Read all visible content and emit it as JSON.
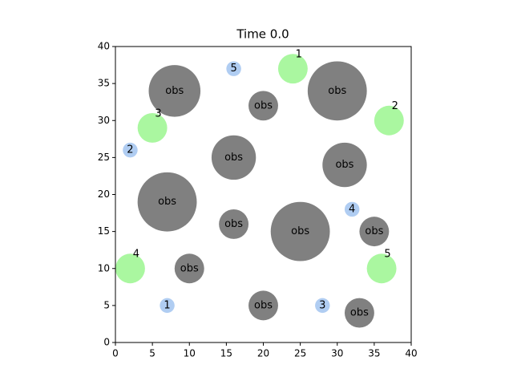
{
  "chart_data": {
    "type": "scatter",
    "title": "Time 0.0",
    "xlim": [
      0,
      40
    ],
    "ylim": [
      0,
      40
    ],
    "xticks": [
      0,
      5,
      10,
      15,
      20,
      25,
      30,
      35,
      40
    ],
    "yticks": [
      0,
      5,
      10,
      15,
      20,
      25,
      30,
      35,
      40
    ],
    "obstacles": {
      "label": "obs",
      "color": "#808080",
      "x": [
        8,
        20,
        30,
        16,
        31,
        7,
        16,
        25,
        35,
        10,
        20,
        33
      ],
      "y": [
        34,
        32,
        34,
        25,
        24,
        19,
        16,
        15,
        15,
        10,
        5,
        4
      ],
      "r": [
        3.5,
        2,
        4,
        3,
        3,
        4,
        2,
        4,
        2,
        2,
        2,
        2
      ]
    },
    "goals": {
      "color": "#aaf7a0",
      "labels": [
        "1",
        "2",
        "3",
        "4",
        "5"
      ],
      "x": [
        24,
        37,
        5,
        2,
        36
      ],
      "y": [
        37,
        30,
        29,
        10,
        10
      ],
      "r": [
        2,
        2,
        2,
        2,
        2
      ]
    },
    "agents": {
      "color": "#b0cdf2",
      "labels": [
        "1",
        "2",
        "3",
        "4",
        "5"
      ],
      "x": [
        7,
        2,
        28,
        32,
        16
      ],
      "y": [
        5,
        26,
        5,
        18,
        37
      ],
      "r": [
        1,
        1,
        1,
        1,
        1
      ]
    }
  }
}
